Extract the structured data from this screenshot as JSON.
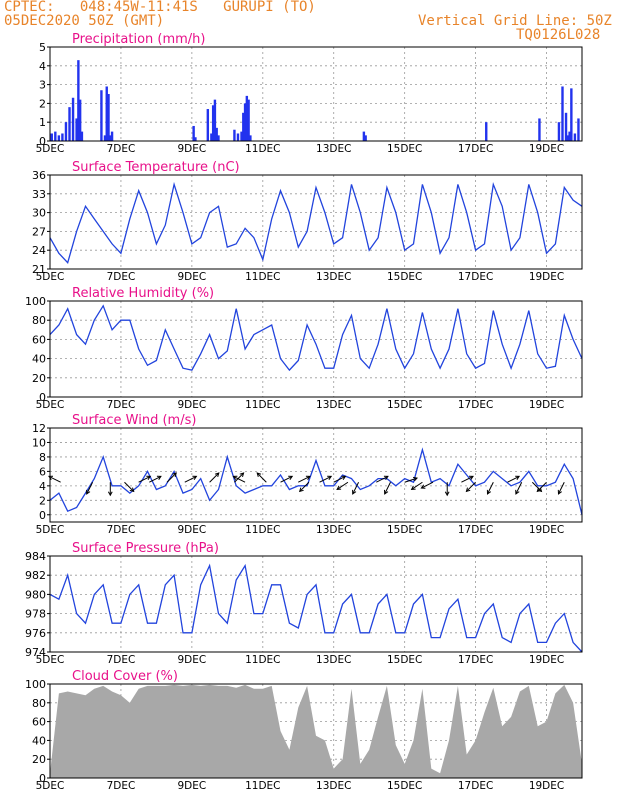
{
  "header": {
    "station_line": "CPTEC:   048:45W-11:41S   GURUPI (TO)",
    "run_line": "05DEC2020 50Z (GMT)",
    "grid_note": "Vertical Grid Line: 50Z",
    "code": "TQ0126L028"
  },
  "colors": {
    "header": "#e8842a",
    "title": "#e8118a",
    "line": "#2244dd",
    "bar": "#2233ee",
    "cloud": "#a8a8a8",
    "arrow": "#000000"
  },
  "x_tick_labels": [
    "5DEC",
    "7DEC",
    "9DEC",
    "11DEC",
    "13DEC",
    "15DEC",
    "17DEC",
    "19DEC"
  ],
  "x_tick_days": [
    0,
    2,
    4,
    6,
    8,
    10,
    12,
    14
  ],
  "x_range_days": [
    0,
    15
  ],
  "chart_data": [
    {
      "type": "bar",
      "title": "Precipitation (mm/h)",
      "ylim": [
        0,
        5
      ],
      "yticks": [
        0,
        1,
        2,
        3,
        4,
        5
      ],
      "x_days": [
        0.05,
        0.15,
        0.25,
        0.35,
        0.45,
        0.55,
        0.65,
        0.75,
        0.8,
        0.85,
        0.9,
        1.45,
        1.55,
        1.6,
        1.65,
        1.7,
        1.75,
        4.05,
        4.1,
        4.45,
        4.55,
        4.6,
        4.65,
        4.7,
        4.75,
        5.2,
        5.3,
        5.4,
        5.45,
        5.5,
        5.55,
        5.6,
        5.65,
        8.85,
        8.9,
        12.3,
        13.8,
        14.35,
        14.45,
        14.55,
        14.6,
        14.65,
        14.7,
        14.8,
        14.9
      ],
      "values": [
        0.4,
        0.5,
        0.3,
        0.4,
        1.0,
        1.8,
        2.3,
        1.2,
        4.3,
        2.2,
        0.5,
        2.7,
        0.3,
        2.9,
        2.5,
        0.3,
        0.5,
        0.8,
        0.2,
        1.7,
        0.4,
        1.9,
        2.2,
        0.7,
        0.3,
        0.6,
        0.4,
        0.5,
        1.5,
        2.0,
        2.4,
        2.2,
        0.3,
        0.5,
        0.3,
        1.0,
        1.2,
        1.0,
        2.9,
        1.5,
        0.3,
        0.5,
        2.8,
        0.4,
        1.2
      ]
    },
    {
      "type": "line",
      "title": "Surface Temperature (nC)",
      "ylim": [
        21,
        36
      ],
      "yticks": [
        21,
        24,
        27,
        30,
        33,
        36
      ],
      "x_days": [
        0,
        0.25,
        0.5,
        0.75,
        1,
        1.25,
        1.5,
        1.75,
        2,
        2.25,
        2.5,
        2.75,
        3,
        3.25,
        3.5,
        3.75,
        4,
        4.25,
        4.5,
        4.75,
        5,
        5.25,
        5.5,
        5.75,
        6,
        6.25,
        6.5,
        6.75,
        7,
        7.25,
        7.5,
        7.75,
        8,
        8.25,
        8.5,
        8.75,
        9,
        9.25,
        9.5,
        9.75,
        10,
        10.25,
        10.5,
        10.75,
        11,
        11.25,
        11.5,
        11.75,
        12,
        12.25,
        12.5,
        12.75,
        13,
        13.25,
        13.5,
        13.75,
        14,
        14.25,
        14.5,
        14.75,
        15
      ],
      "values": [
        26,
        23.5,
        22,
        27,
        31,
        29,
        27,
        25,
        23.5,
        29,
        33.5,
        30,
        25,
        28,
        34.5,
        30,
        25,
        26,
        30,
        31,
        24.5,
        25,
        27.5,
        26,
        22.5,
        29,
        33.5,
        30,
        24.5,
        27,
        34,
        30,
        25,
        26,
        34.5,
        30,
        24,
        26,
        34,
        30,
        24,
        25,
        34.5,
        30,
        23.5,
        26,
        34.5,
        30,
        24,
        25,
        34.5,
        31,
        24,
        26,
        34.5,
        30,
        23.5,
        25,
        34,
        32,
        31
      ]
    },
    {
      "type": "line",
      "title": "Relative Humidity (%)",
      "ylim": [
        0,
        100
      ],
      "yticks": [
        0,
        20,
        40,
        60,
        80,
        100
      ],
      "x_days": [
        0,
        0.25,
        0.5,
        0.75,
        1,
        1.25,
        1.5,
        1.75,
        2,
        2.25,
        2.5,
        2.75,
        3,
        3.25,
        3.5,
        3.75,
        4,
        4.25,
        4.5,
        4.75,
        5,
        5.25,
        5.5,
        5.75,
        6,
        6.25,
        6.5,
        6.75,
        7,
        7.25,
        7.5,
        7.75,
        8,
        8.25,
        8.5,
        8.75,
        9,
        9.25,
        9.5,
        9.75,
        10,
        10.25,
        10.5,
        10.75,
        11,
        11.25,
        11.5,
        11.75,
        12,
        12.25,
        12.5,
        12.75,
        13,
        13.25,
        13.5,
        13.75,
        14,
        14.25,
        14.5,
        14.75,
        15
      ],
      "values": [
        65,
        75,
        92,
        65,
        55,
        80,
        95,
        70,
        80,
        80,
        50,
        33,
        38,
        70,
        50,
        30,
        28,
        45,
        65,
        40,
        48,
        92,
        50,
        65,
        70,
        75,
        40,
        28,
        38,
        75,
        55,
        30,
        30,
        65,
        85,
        40,
        30,
        55,
        92,
        50,
        30,
        45,
        88,
        50,
        30,
        50,
        92,
        45,
        30,
        35,
        90,
        55,
        30,
        55,
        90,
        45,
        30,
        32,
        85,
        60,
        40
      ]
    },
    {
      "type": "line",
      "title": "Surface Wind (m/s)",
      "ylim": [
        -1,
        12
      ],
      "yticks": [
        0,
        2,
        4,
        6,
        8,
        10,
        12
      ],
      "x_days": [
        0,
        0.25,
        0.5,
        0.75,
        1,
        1.25,
        1.5,
        1.75,
        2,
        2.25,
        2.5,
        2.75,
        3,
        3.25,
        3.5,
        3.75,
        4,
        4.25,
        4.5,
        4.75,
        5,
        5.25,
        5.5,
        5.75,
        6,
        6.25,
        6.5,
        6.75,
        7,
        7.25,
        7.5,
        7.75,
        8,
        8.25,
        8.5,
        8.75,
        9,
        9.25,
        9.5,
        9.75,
        10,
        10.25,
        10.5,
        10.75,
        11,
        11.25,
        11.5,
        11.75,
        12,
        12.25,
        12.5,
        12.75,
        13,
        13.25,
        13.5,
        13.75,
        14,
        14.25,
        14.5,
        14.75,
        15
      ],
      "values": [
        2,
        3,
        0.5,
        1,
        3,
        5,
        8,
        4,
        4,
        3,
        4,
        6,
        3.5,
        4,
        6,
        3,
        3.5,
        5,
        2,
        3.5,
        8,
        4,
        3,
        3.5,
        4,
        4,
        5.5,
        3.5,
        4,
        4,
        7.5,
        4,
        4,
        5.5,
        5,
        3.5,
        4,
        5,
        5,
        4,
        5,
        4.5,
        9,
        4.5,
        5,
        4,
        7,
        5.5,
        4,
        4.5,
        6,
        5,
        4,
        4.5,
        6,
        4,
        4,
        4.5,
        7,
        5,
        0
      ]
    },
    {
      "type": "line",
      "title": "Surface Pressure (hPa)",
      "ylim": [
        974,
        984
      ],
      "yticks": [
        974,
        976,
        978,
        980,
        982,
        984
      ],
      "x_days": [
        0,
        0.25,
        0.5,
        0.75,
        1,
        1.25,
        1.5,
        1.75,
        2,
        2.25,
        2.5,
        2.75,
        3,
        3.25,
        3.5,
        3.75,
        4,
        4.25,
        4.5,
        4.75,
        5,
        5.25,
        5.5,
        5.75,
        6,
        6.25,
        6.5,
        6.75,
        7,
        7.25,
        7.5,
        7.75,
        8,
        8.25,
        8.5,
        8.75,
        9,
        9.25,
        9.5,
        9.75,
        10,
        10.25,
        10.5,
        10.75,
        11,
        11.25,
        11.5,
        11.75,
        12,
        12.25,
        12.5,
        12.75,
        13,
        13.25,
        13.5,
        13.75,
        14,
        14.25,
        14.5,
        14.75,
        15
      ],
      "values": [
        980,
        979.5,
        982,
        978,
        977,
        980,
        981,
        977,
        977,
        980,
        981,
        977,
        977,
        981,
        982,
        976,
        976,
        981,
        983,
        978,
        977,
        981.5,
        983,
        978,
        978,
        981,
        981,
        977,
        976.5,
        980,
        981,
        976,
        976,
        979,
        980,
        976,
        976,
        979,
        980,
        976,
        976,
        979,
        980,
        975.5,
        975.5,
        978.5,
        979.5,
        975.5,
        975.5,
        978,
        979,
        975.5,
        975,
        978,
        979,
        975,
        975,
        977,
        978,
        975,
        974
      ]
    },
    {
      "type": "area",
      "title": "Cloud Cover (%)",
      "ylim": [
        0,
        100
      ],
      "yticks": [
        0,
        20,
        40,
        60,
        80,
        100
      ],
      "x_days": [
        0,
        0.25,
        0.5,
        0.75,
        1,
        1.25,
        1.5,
        1.75,
        2,
        2.25,
        2.5,
        2.75,
        3,
        3.25,
        3.5,
        3.75,
        4,
        4.25,
        4.5,
        4.75,
        5,
        5.25,
        5.5,
        5.75,
        6,
        6.25,
        6.5,
        6.75,
        7,
        7.25,
        7.5,
        7.75,
        8,
        8.25,
        8.5,
        8.75,
        9,
        9.25,
        9.5,
        9.75,
        10,
        10.25,
        10.5,
        10.75,
        11,
        11.25,
        11.5,
        11.75,
        12,
        12.25,
        12.5,
        12.75,
        13,
        13.25,
        13.5,
        13.75,
        14,
        14.25,
        14.5,
        14.75,
        15
      ],
      "values": [
        5,
        90,
        92,
        90,
        88,
        95,
        98,
        92,
        88,
        80,
        95,
        98,
        98,
        98,
        99,
        98,
        99,
        98,
        99,
        98,
        98,
        96,
        99,
        95,
        95,
        98,
        50,
        30,
        75,
        98,
        45,
        40,
        10,
        20,
        95,
        15,
        30,
        65,
        98,
        35,
        15,
        40,
        95,
        10,
        5,
        40,
        98,
        25,
        40,
        70,
        96,
        55,
        65,
        92,
        98,
        55,
        60,
        90,
        99,
        80,
        15
      ]
    }
  ],
  "wind_arrows": {
    "x_days": [
      0.3,
      1.2,
      1.7,
      2.1,
      2.5,
      2.8,
      3.3,
      3.8,
      4.5,
      5.2,
      5.5,
      6.1,
      6.5,
      7,
      7.3,
      7.6,
      8,
      8.4,
      8.7,
      9.2,
      9.6,
      10,
      10.5,
      10.8,
      11.2,
      11.6,
      12,
      12.5,
      12.9,
      13.3,
      13.6,
      14,
      14.5
    ],
    "u": [
      -2,
      -1,
      0,
      1,
      2,
      2,
      1,
      2,
      1,
      1,
      -2,
      -1,
      2,
      2,
      -1,
      2,
      2,
      -3,
      -1,
      2,
      -1,
      3,
      -3,
      -2,
      0,
      2,
      -1,
      -1,
      2,
      -1,
      1,
      -1,
      -1
    ],
    "v": [
      1,
      -2,
      -2,
      -1,
      1,
      1,
      1,
      1,
      1,
      1,
      1,
      1,
      1,
      1,
      -1,
      1,
      1,
      -2,
      -2,
      1,
      -2,
      1,
      -2,
      -1,
      -2,
      1,
      -1,
      -2,
      1,
      -2,
      -1,
      -1,
      -2
    ]
  }
}
